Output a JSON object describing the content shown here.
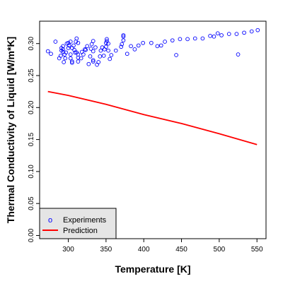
{
  "chart_data": {
    "type": "scatter",
    "xlabel": "Temperature [K]",
    "ylabel": "Thermal Conductivity of Liquid [W/m*K]",
    "xlim": [
      262,
      562
    ],
    "ylim": [
      -0.005,
      0.335
    ],
    "x_ticks": [
      300,
      350,
      400,
      450,
      500,
      550
    ],
    "y_ticks": [
      0.0,
      0.05,
      0.1,
      0.15,
      0.2,
      0.25,
      0.3
    ],
    "x_tick_labels": [
      "300",
      "350",
      "400",
      "450",
      "500",
      "550"
    ],
    "y_tick_labels": [
      "0.00",
      "0.05",
      "0.10",
      "0.15",
      "0.20",
      "0.25",
      "0.30"
    ],
    "grid": false,
    "legend_position": "bottom-left",
    "legend": {
      "items": [
        {
          "label": "Experiments",
          "symbol_text": "o",
          "color": "#0000ff"
        },
        {
          "label": "Prediction",
          "color": "#ff0000"
        }
      ]
    },
    "series": [
      {
        "name": "Experiments",
        "kind": "scatter",
        "color": "#0000ff",
        "points": [
          [
            273,
            0.288
          ],
          [
            277,
            0.284
          ],
          [
            283,
            0.303
          ],
          [
            288,
            0.277
          ],
          [
            290,
            0.281
          ],
          [
            291,
            0.293
          ],
          [
            291,
            0.289
          ],
          [
            293,
            0.296
          ],
          [
            293,
            0.291
          ],
          [
            293,
            0.287
          ],
          [
            294,
            0.271
          ],
          [
            295,
            0.283
          ],
          [
            296,
            0.277
          ],
          [
            297,
            0.286
          ],
          [
            298,
            0.3
          ],
          [
            300,
            0.301
          ],
          [
            300,
            0.293
          ],
          [
            301,
            0.297
          ],
          [
            303,
            0.283
          ],
          [
            303,
            0.303
          ],
          [
            303,
            0.277
          ],
          [
            305,
            0.293
          ],
          [
            305,
            0.272
          ],
          [
            305,
            0.27
          ],
          [
            307,
            0.297
          ],
          [
            308,
            0.29
          ],
          [
            309,
            0.286
          ],
          [
            310,
            0.303
          ],
          [
            311,
            0.308
          ],
          [
            311,
            0.286
          ],
          [
            313,
            0.283
          ],
          [
            313,
            0.278
          ],
          [
            313,
            0.272
          ],
          [
            313,
            0.301
          ],
          [
            317,
            0.277
          ],
          [
            318,
            0.287
          ],
          [
            320,
            0.283
          ],
          [
            322,
            0.291
          ],
          [
            323,
            0.29
          ],
          [
            325,
            0.296
          ],
          [
            327,
            0.268
          ],
          [
            329,
            0.28
          ],
          [
            330,
            0.292
          ],
          [
            331,
            0.299
          ],
          [
            333,
            0.304
          ],
          [
            333,
            0.288
          ],
          [
            333,
            0.274
          ],
          [
            333,
            0.272
          ],
          [
            336,
            0.294
          ],
          [
            338,
            0.267
          ],
          [
            340,
            0.271
          ],
          [
            342,
            0.28
          ],
          [
            343,
            0.289
          ],
          [
            345,
            0.294
          ],
          [
            347,
            0.281
          ],
          [
            348,
            0.291
          ],
          [
            350,
            0.301
          ],
          [
            350,
            0.295
          ],
          [
            351,
            0.307
          ],
          [
            351,
            0.304
          ],
          [
            353,
            0.3
          ],
          [
            353,
            0.289
          ],
          [
            355,
            0.276
          ],
          [
            357,
            0.282
          ],
          [
            363,
            0.289
          ],
          [
            370,
            0.295
          ],
          [
            371,
            0.299
          ],
          [
            373,
            0.305
          ],
          [
            373,
            0.313
          ],
          [
            373,
            0.311
          ],
          [
            378,
            0.284
          ],
          [
            383,
            0.296
          ],
          [
            388,
            0.291
          ],
          [
            393,
            0.297
          ],
          [
            399,
            0.301
          ],
          [
            410,
            0.301
          ],
          [
            418,
            0.296
          ],
          [
            423,
            0.297
          ],
          [
            428,
            0.303
          ],
          [
            438,
            0.305
          ],
          [
            443,
            0.282
          ],
          [
            448,
            0.307
          ],
          [
            458,
            0.307
          ],
          [
            468,
            0.308
          ],
          [
            478,
            0.308
          ],
          [
            488,
            0.312
          ],
          [
            493,
            0.311
          ],
          [
            498,
            0.316
          ],
          [
            503,
            0.313
          ],
          [
            513,
            0.315
          ],
          [
            523,
            0.315
          ],
          [
            525,
            0.283
          ],
          [
            533,
            0.317
          ],
          [
            543,
            0.319
          ],
          [
            551,
            0.321
          ]
        ]
      },
      {
        "name": "Prediction",
        "kind": "line",
        "color": "#ff0000",
        "x": [
          273,
          300,
          350,
          400,
          450,
          500,
          550
        ],
        "y": [
          0.225,
          0.219,
          0.205,
          0.189,
          0.175,
          0.159,
          0.142
        ]
      }
    ]
  }
}
